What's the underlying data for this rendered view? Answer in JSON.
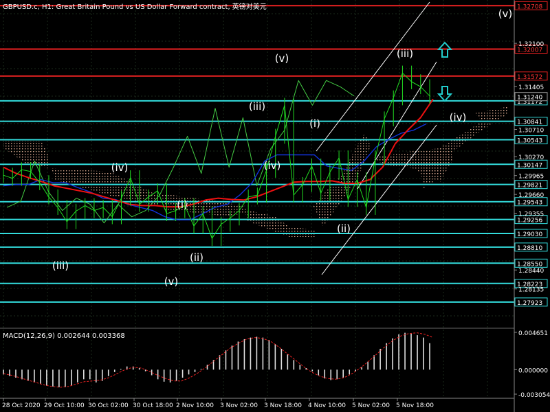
{
  "header": {
    "title": "GBPUSD.c, H1:  Great Britain Pound vs US Dollar Forward contract, 英镑对美元"
  },
  "colors": {
    "background": "#000000",
    "grid": "#1c2b1c",
    "price_line": "#22dd22",
    "upper_line": "#44cc44",
    "red_ma": "#ee1111",
    "blue_ma": "#1133dd",
    "cloud": "#d8a890",
    "level_red": "#ee2222",
    "level_cyan": "#33dddd",
    "channel": "#ffffff",
    "macd_hist": "#e0e0e0",
    "macd_signal": "#ee2222",
    "arrow": "#22cccc",
    "axis_text": "#ffffff"
  },
  "indicators": {
    "macd_label": "MACD(12,26,9) 0.002644 0.003368",
    "macd_ticks": [
      "0.004651",
      "0.000000",
      "-0.003054"
    ]
  },
  "chart_data": {
    "type": "line",
    "title": "GBPUSD.c, H1:  Great Britain Pound vs US Dollar Forward contract, 英镑对美元",
    "xlabel": "",
    "ylabel": "",
    "ylim": [
      1.275,
      1.328
    ],
    "grid": true,
    "x_ticks": [
      "28 Oct 2020",
      "29 Oct 10:00",
      "30 Oct 02:00",
      "30 Oct 18:00",
      "2 Nov 10:00",
      "3 Nov 02:00",
      "3 Nov 18:00",
      "4 Nov 10:00",
      "5 Nov 02:00",
      "5 Nov 18:00"
    ],
    "y_ticks": [
      "1.32100",
      "1.31405",
      "1.30710",
      "1.30270",
      "1.29965",
      "1.29660",
      "1.29355",
      "1.28440",
      "1.28135"
    ],
    "levels_red": [
      1.32708,
      1.32007,
      1.31572
    ],
    "levels_red_labels": [
      "1.32708",
      "1.32007",
      "1.31572"
    ],
    "levels_cyan": [
      1.31172,
      1.30841,
      1.30543,
      1.30147,
      1.29821,
      1.29543,
      1.29256,
      1.2903,
      1.2881,
      1.2855,
      1.28223,
      1.27923
    ],
    "levels_cyan_labels": [
      "1.31172",
      "1.30841",
      "1.30543",
      "1.30147",
      "1.29821",
      "1.29543",
      "1.29256",
      "1.29030",
      "1.28810",
      "1.28550",
      "1.28223",
      "1.27923"
    ],
    "current_price_label": "1.31240",
    "series": [
      {
        "values": [
          1.2997,
          1.2992,
          1.3006,
          1.3003,
          1.2985,
          1.2962,
          1.2945,
          1.2922,
          1.2939,
          1.2948,
          1.294,
          1.2945,
          1.293,
          1.296,
          1.2993,
          1.295,
          1.2962,
          1.2972,
          1.2935,
          1.294,
          1.2948,
          1.2915,
          1.2935,
          1.2895,
          1.2918,
          1.2928,
          1.294,
          1.2962,
          1.2965,
          1.3005,
          1.306,
          1.311,
          1.2965,
          1.2982,
          1.3012,
          1.2968,
          1.3002,
          1.3025,
          1.2958,
          1.299,
          1.2945,
          1.3025,
          1.3088,
          1.3122,
          1.3162,
          1.3148,
          1.314,
          1.3125
        ]
      },
      {
        "name": "red_ma",
        "values": [
          1.301,
          1.3,
          1.2993,
          1.2987,
          1.298,
          1.2976,
          1.2972,
          1.2968,
          1.2962,
          1.2956,
          1.295,
          1.2948,
          1.2948,
          1.2946,
          1.2946,
          1.295,
          1.2957,
          1.296,
          1.2958,
          1.2957,
          1.2962,
          1.297,
          1.2978,
          1.2986,
          1.2987,
          1.2987,
          1.2988,
          1.2984,
          1.2984,
          1.299,
          1.301,
          1.3048,
          1.307,
          1.309,
          1.312
        ]
      },
      {
        "name": "blue_ma",
        "values": [
          1.298,
          1.2982,
          1.2982,
          1.299,
          1.2985,
          1.2985,
          1.2977,
          1.297,
          1.296,
          1.2958,
          1.295,
          1.2945,
          1.294,
          1.293,
          1.2925,
          1.2925,
          1.2935,
          1.2945,
          1.295,
          1.2965,
          1.2985,
          1.302,
          1.303,
          1.303,
          1.303,
          1.303,
          1.3012,
          1.3008,
          1.3005,
          1.302,
          1.3043,
          1.3055,
          1.3065,
          1.307,
          1.308
        ]
      },
      {
        "name": "upper_line",
        "values": [
          1.2945,
          1.2955,
          1.302,
          1.297,
          1.294,
          1.296,
          1.295,
          1.292,
          1.295,
          1.293,
          1.294,
          1.2965,
          1.301,
          1.306,
          1.3,
          1.3105,
          1.301,
          1.309,
          1.298,
          1.304,
          1.307,
          1.315,
          1.311,
          1.315,
          1.314,
          1.3125
        ]
      }
    ],
    "wave_labels": [
      "(iii)",
      "(iv)",
      "(v)",
      "(i)",
      "(ii)",
      "(iii)",
      "(iv)",
      "(v)",
      "(i)",
      "(ii)",
      "(iii)",
      "(iv)",
      "(v)"
    ],
    "macd": {
      "ylim": [
        -0.003054,
        0.004651
      ],
      "histogram": [
        -0.0006,
        -0.0008,
        -0.001,
        -0.0012,
        -0.0014,
        -0.0016,
        -0.0018,
        -0.002,
        -0.0021,
        -0.0022,
        -0.0022,
        -0.002,
        -0.0016,
        -0.0012,
        -0.0012,
        -0.0016,
        -0.0014,
        -0.0008,
        -0.0003,
        0.0001,
        0.0004,
        0.0004,
        0.0002,
        -0.0002,
        -0.0007,
        -0.0012,
        -0.0015,
        -0.0016,
        -0.0014,
        -0.001,
        -0.0006,
        -0.0003,
        0.0001,
        0.0006,
        0.0012,
        0.0018,
        0.0024,
        0.003,
        0.0035,
        0.0038,
        0.004,
        0.0041,
        0.004,
        0.0037,
        0.0032,
        0.0026,
        0.0019,
        0.0012,
        0.0006,
        0.0002,
        -0.0002,
        -0.0007,
        -0.0011,
        -0.0013,
        -0.0012,
        -0.001,
        -0.0006,
        -0.0002,
        0.0003,
        0.001,
        0.0018,
        0.0026,
        0.0033,
        0.0039,
        0.0044,
        0.0046,
        0.0045,
        0.0043,
        0.004,
        0.0033
      ],
      "signal": [
        -0.0005,
        -0.0007,
        -0.001,
        -0.0013,
        -0.0016,
        -0.0019,
        -0.0021,
        -0.0022,
        -0.0021,
        -0.0018,
        -0.0015,
        -0.0014,
        -0.0013,
        -0.001,
        -0.0005,
        0.0,
        0.0003,
        0.0002,
        -0.0002,
        -0.0007,
        -0.0011,
        -0.0014,
        -0.0014,
        -0.001,
        -0.0004,
        0.0003,
        0.0011,
        0.0019,
        0.0027,
        0.0033,
        0.0038,
        0.004,
        0.0039,
        0.0035,
        0.0028,
        0.002,
        0.0012,
        0.0004,
        -0.0003,
        -0.0008,
        -0.0011,
        -0.0012,
        -0.001,
        -0.0005,
        0.0002,
        0.001,
        0.0019,
        0.0028,
        0.0036,
        0.0042,
        0.0045,
        0.0046,
        0.0044,
        0.004
      ]
    }
  }
}
